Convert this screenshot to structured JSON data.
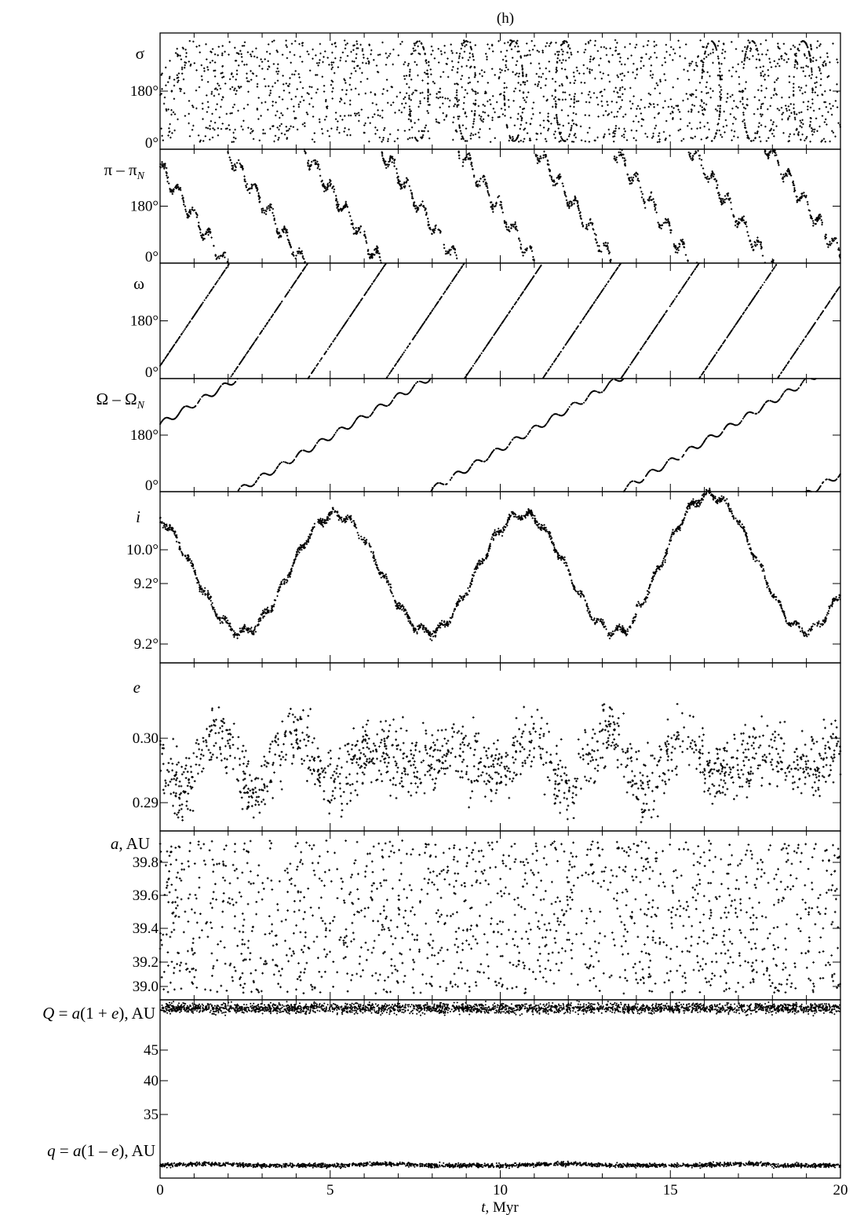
{
  "figure": {
    "panel_tag": "(h)",
    "x_axis_label_italic": "t",
    "x_axis_label_rest": ", Myr",
    "x_ticks": [
      "0",
      "5",
      "10",
      "15",
      "20"
    ],
    "colors": {
      "ink": "#000000",
      "background": "#ffffff"
    }
  },
  "panels": [
    {
      "id": "sigma",
      "label_parts": [
        {
          "t": "σ",
          "s": "n"
        }
      ],
      "ticks": [
        "180°",
        "0°"
      ]
    },
    {
      "id": "pi",
      "label_parts": [
        {
          "t": "π – π",
          "s": "n"
        },
        {
          "t": "N",
          "s": "sub"
        }
      ],
      "ticks": [
        "180°",
        "0°"
      ]
    },
    {
      "id": "omega",
      "label_parts": [
        {
          "t": "ω",
          "s": "n"
        }
      ],
      "ticks": [
        "180°",
        "0°"
      ]
    },
    {
      "id": "Omega",
      "label_parts": [
        {
          "t": "Ω – Ω",
          "s": "n"
        },
        {
          "t": "N",
          "s": "sub"
        }
      ],
      "ticks": [
        "180°",
        "0°"
      ]
    },
    {
      "id": "incl",
      "label_parts": [
        {
          "t": "i",
          "s": "i"
        }
      ],
      "ticks": [
        "10.0°",
        "9.2°",
        "9.2°"
      ]
    },
    {
      "id": "ecc",
      "label_parts": [
        {
          "t": "e",
          "s": "i"
        }
      ],
      "ticks": [
        "0.30",
        "0.29"
      ]
    },
    {
      "id": "semi",
      "label_parts": [
        {
          "t": "a",
          "s": "i"
        },
        {
          "t": ", AU",
          "s": "n"
        }
      ],
      "ticks": [
        "39.8",
        "39.6",
        "39.4",
        "39.2",
        "39.0"
      ]
    },
    {
      "id": "Qq",
      "label_parts": [],
      "ticks": [
        "45",
        "40",
        "35"
      ],
      "extra_labels": [
        [
          {
            "t": "Q",
            "s": "i"
          },
          {
            "t": " = ",
            "s": "n"
          },
          {
            "t": "a",
            "s": "i"
          },
          {
            "t": "(1 + ",
            "s": "n"
          },
          {
            "t": "e",
            "s": "i"
          },
          {
            "t": "), AU",
            "s": "n"
          }
        ],
        [
          {
            "t": "q",
            "s": "i"
          },
          {
            "t": " = ",
            "s": "n"
          },
          {
            "t": "a",
            "s": "i"
          },
          {
            "t": "(1 – ",
            "s": "n"
          },
          {
            "t": "e",
            "s": "i"
          },
          {
            "t": "), AU",
            "s": "n"
          }
        ]
      ]
    }
  ],
  "chart_data": {
    "type": "scatter",
    "x": {
      "label": "t, Myr",
      "range": [
        0,
        20
      ],
      "ticks": [
        0,
        5,
        10,
        15,
        20
      ]
    },
    "series": [
      {
        "name": "σ",
        "unit": "deg",
        "ylim": [
          0,
          360
        ],
        "ticks": [
          0,
          180
        ],
        "pattern": "libration/circulation scatter filling ~20°–340°, with librating lobes near 7.5–8, 9, 10.5, 12, 16–16.5, 18, 19 Myr"
      },
      {
        "name": "π – π_N",
        "unit": "deg",
        "ylim": [
          0,
          360
        ],
        "ticks": [
          0,
          180
        ],
        "pattern": "decreasing sawtooth, ~9 full cycles over 20 Myr, period ~2.3 Myr"
      },
      {
        "name": "ω",
        "unit": "deg",
        "ylim": [
          0,
          360
        ],
        "ticks": [
          0,
          180
        ],
        "crossings_zero_Myr": [
          4.5,
          6.9,
          9.2,
          11.5,
          13.8,
          16.0,
          18.1
        ],
        "pattern": "linear increasing sawtooth, period ~2.3 Myr"
      },
      {
        "name": "Ω – Ω_N",
        "unit": "deg",
        "ylim": [
          0,
          360
        ],
        "ticks": [
          0,
          180
        ],
        "crossings_zero_Myr": [
          2.2,
          7.5,
          13.3,
          19.0
        ],
        "pattern": "increasing with small wiggles, period ~5.6 Myr"
      },
      {
        "name": "i",
        "unit": "deg",
        "ticks": [
          "10.0°",
          "9.2°",
          "9.2°"
        ],
        "minima_Myr": [
          2.4,
          7.8,
          13.3,
          19.2
        ],
        "maxima_Myr": [
          4.5,
          9.8,
          15.9
        ],
        "pattern": "oscillation with period ~5.5 Myr"
      },
      {
        "name": "e",
        "ticks": [
          0.29,
          0.3
        ],
        "ylim": [
          0.287,
          0.311
        ],
        "pattern": "noisy scatter around 0.296 oscillating ~±0.006"
      },
      {
        "name": "a, AU",
        "ticks": [
          39.0,
          39.2,
          39.4,
          39.6,
          39.8
        ],
        "ylim": [
          38.9,
          40.1
        ],
        "pattern": "noisy scatter between ~38.95 and 39.95 AU"
      },
      {
        "name": "Q = a(1 + e), AU",
        "ylim": [
          29,
          52
        ],
        "ticks": [
          35,
          40,
          45
        ],
        "pattern": "narrow band near 51 AU"
      },
      {
        "name": "q = a(1 – e), AU",
        "ylim": [
          29,
          52
        ],
        "pattern": "narrow band near 27.8 AU"
      }
    ]
  }
}
